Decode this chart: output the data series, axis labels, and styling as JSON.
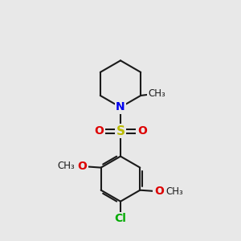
{
  "background_color": "#e8e8e8",
  "bond_color": "#1a1a1a",
  "bond_lw": 1.5,
  "figsize": [
    3.0,
    3.0
  ],
  "dpi": 100,
  "colors": {
    "N": "#0000ee",
    "S": "#bbbb00",
    "O": "#dd0000",
    "Cl": "#00aa00",
    "C": "#1a1a1a"
  },
  "font_size": 9,
  "xlim": [
    2.0,
    8.5
  ],
  "ylim": [
    0.5,
    9.5
  ]
}
